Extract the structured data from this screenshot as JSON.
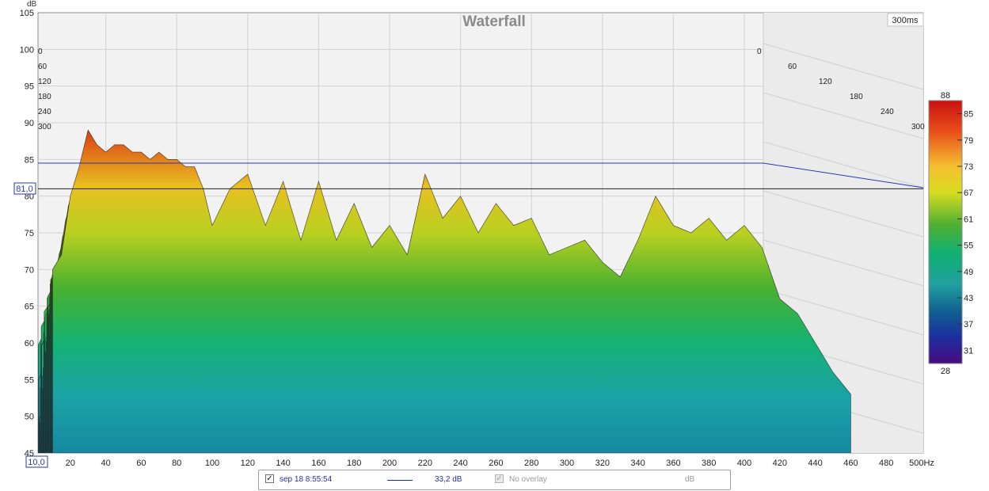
{
  "chart_data": {
    "type": "area",
    "title": "Waterfall",
    "time_window_label": "300ms",
    "ylabel_unit": "dB",
    "x_unit_label": "Hz",
    "xlim": [
      10,
      500
    ],
    "ylim": [
      45,
      105
    ],
    "y_ticks": [
      "105",
      "100",
      "95",
      "90",
      "85",
      "80",
      "75",
      "70",
      "65",
      "60",
      "55",
      "50",
      "45"
    ],
    "x_ticks": [
      "20",
      "40",
      "60",
      "80",
      "100",
      "120",
      "140",
      "160",
      "180",
      "200",
      "220",
      "240",
      "260",
      "280",
      "300",
      "320",
      "340",
      "360",
      "380",
      "400",
      "420",
      "440",
      "460",
      "480",
      "500Hz"
    ],
    "x_start_label": "10,0",
    "cursor_y_label": "81,0",
    "cursor_y_value": 81,
    "reference_line_db": 84.5,
    "time_ticks_left": [
      "0",
      "60",
      "120",
      "180",
      "240",
      "300"
    ],
    "time_ticks_right": [
      "0",
      "60",
      "120",
      "180",
      "240",
      "300"
    ],
    "colorbar": {
      "max_label": "88",
      "min_label": "28",
      "ticks": [
        "85",
        "79",
        "73",
        "67",
        "61",
        "55",
        "49",
        "43",
        "37",
        "31"
      ],
      "range": [
        28,
        88
      ]
    },
    "front_slice": {
      "x": [
        10,
        15,
        20,
        25,
        30,
        35,
        40,
        45,
        50,
        55,
        60,
        65,
        70,
        75,
        80,
        85,
        90,
        95,
        100,
        110,
        120,
        130,
        140,
        150,
        160,
        170,
        180,
        190,
        200,
        210,
        220,
        230,
        240,
        250,
        260,
        270,
        280,
        290,
        300,
        310,
        320,
        330,
        340,
        350,
        360,
        370,
        380,
        390,
        400,
        410,
        420,
        430,
        440,
        450,
        460
      ],
      "y": [
        70,
        72,
        80,
        84,
        89,
        87,
        86,
        87,
        87,
        86,
        86,
        85,
        86,
        85,
        85,
        84,
        84,
        81,
        76,
        81,
        83,
        76,
        82,
        74,
        82,
        74,
        79,
        73,
        76,
        72,
        83,
        77,
        80,
        75,
        79,
        76,
        77,
        72,
        73,
        74,
        71,
        69,
        74,
        80,
        76,
        75,
        77,
        74,
        76,
        73,
        66,
        64,
        60,
        56,
        53
      ]
    },
    "series": [
      {
        "name": "sep 18 8:55:54",
        "value_label": "33,2 dB",
        "color": "#1a2a9a"
      }
    ],
    "overlay": {
      "label": "No overlay",
      "unit": "dB"
    }
  },
  "legend": {
    "series_label": "sep 18 8:55:54",
    "series_value": "33,2 dB",
    "overlay_label": "No overlay",
    "overlay_unit": "dB",
    "checkmark": "✓"
  }
}
